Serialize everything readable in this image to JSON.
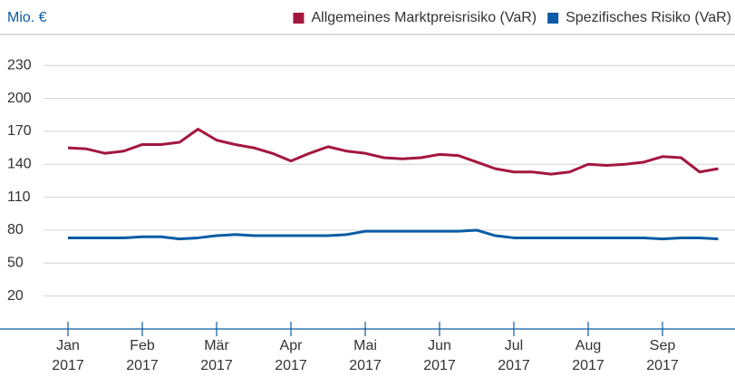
{
  "chart_data": {
    "type": "line",
    "y_label": "Mio. €",
    "categories": [
      "Jan 2017",
      null,
      null,
      null,
      "Feb 2017",
      null,
      null,
      null,
      "Mär 2017",
      null,
      null,
      null,
      "Apr 2017",
      null,
      null,
      null,
      "Mai 2017",
      null,
      null,
      null,
      "Jun 2017",
      null,
      null,
      null,
      "Jul 2017",
      null,
      null,
      null,
      "Aug 2017",
      null,
      null,
      null,
      "Sep 2017",
      null,
      null,
      null
    ],
    "series": [
      {
        "name": "Allgemeines Marktpreisrisiko (VaR)",
        "color": "#a3173e",
        "values": [
          155,
          154,
          150,
          152,
          158,
          158,
          160,
          172,
          162,
          158,
          155,
          150,
          143,
          150,
          156,
          152,
          150,
          146,
          145,
          146,
          149,
          148,
          142,
          136,
          133,
          133,
          131,
          133,
          140,
          139,
          140,
          142,
          147,
          146,
          133,
          136
        ]
      },
      {
        "name": "Spezifisches Risiko (VaR)",
        "color": "#0b5ca5",
        "values": [
          73,
          73,
          73,
          73,
          74,
          74,
          72,
          73,
          75,
          76,
          75,
          75,
          75,
          75,
          75,
          76,
          79,
          79,
          79,
          79,
          79,
          79,
          80,
          75,
          73,
          73,
          73,
          73,
          73,
          73,
          73,
          73,
          72,
          73,
          73,
          72
        ]
      }
    ],
    "ylim": [
      -10,
      250
    ],
    "yticks": [
      20,
      50,
      80,
      110,
      140,
      170,
      200,
      230
    ],
    "grid": true,
    "legend": "top-right"
  }
}
